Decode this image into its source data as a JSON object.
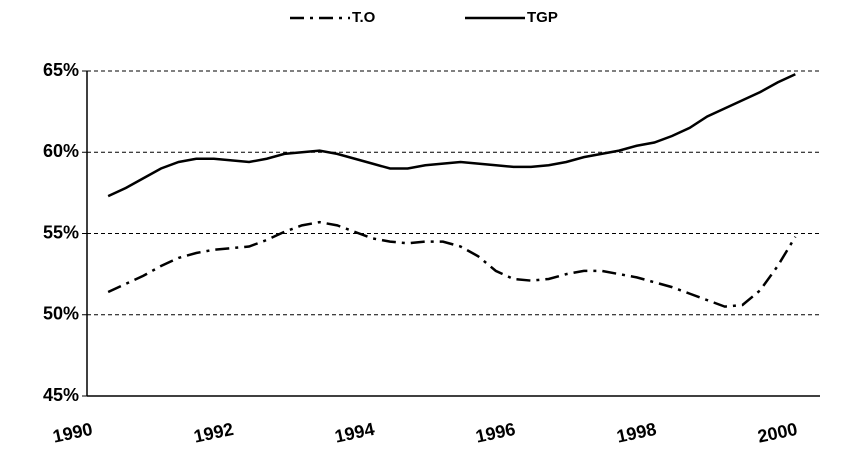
{
  "chart_data": {
    "type": "line",
    "x": [
      1990.5,
      1990.75,
      1991,
      1991.25,
      1991.5,
      1991.75,
      1992,
      1992.25,
      1992.5,
      1992.75,
      1993,
      1993.25,
      1993.5,
      1993.75,
      1994,
      1994.25,
      1994.5,
      1994.75,
      1995,
      1995.25,
      1995.5,
      1995.75,
      1996,
      1996.25,
      1996.5,
      1996.75,
      1997,
      1997.25,
      1997.5,
      1997.75,
      1998,
      1998.25,
      1998.5,
      1998.75,
      1999,
      1999.25,
      1999.5,
      1999.75,
      2000,
      2000.25
    ],
    "series": [
      {
        "name": "T.O",
        "color": "#000000",
        "line_style": "dashdot",
        "values": [
          51.4,
          51.9,
          52.4,
          53.0,
          53.5,
          53.8,
          54.0,
          54.1,
          54.2,
          54.6,
          55.1,
          55.5,
          55.7,
          55.5,
          55.1,
          54.7,
          54.5,
          54.4,
          54.5,
          54.5,
          54.2,
          53.6,
          52.7,
          52.2,
          52.1,
          52.2,
          52.5,
          52.7,
          52.7,
          52.5,
          52.3,
          52.0,
          51.7,
          51.3,
          50.9,
          50.5,
          50.6,
          51.5,
          53.0,
          54.8
        ]
      },
      {
        "name": "TGP",
        "color": "#000000",
        "line_style": "solid",
        "values": [
          57.3,
          57.8,
          58.4,
          59.0,
          59.4,
          59.6,
          59.6,
          59.5,
          59.4,
          59.6,
          59.9,
          60.0,
          60.1,
          59.9,
          59.6,
          59.3,
          59.0,
          59.0,
          59.2,
          59.3,
          59.4,
          59.3,
          59.2,
          59.1,
          59.1,
          59.2,
          59.4,
          59.7,
          59.9,
          60.1,
          60.4,
          60.6,
          61.0,
          61.5,
          62.2,
          62.7,
          63.2,
          63.7,
          64.3,
          64.8
        ]
      }
    ],
    "xlim": [
      1990.2,
      2000.6
    ],
    "xticks": [
      1990,
      1992,
      1994,
      1996,
      1998,
      2000
    ],
    "ylim": [
      45,
      65
    ],
    "yticks": [
      {
        "value": 45,
        "label": "45%"
      },
      {
        "value": 50,
        "label": "50%"
      },
      {
        "value": 55,
        "label": "55%"
      },
      {
        "value": 60,
        "label": "60%"
      },
      {
        "value": 65,
        "label": "65%"
      }
    ],
    "grid": true,
    "legend": "top"
  }
}
